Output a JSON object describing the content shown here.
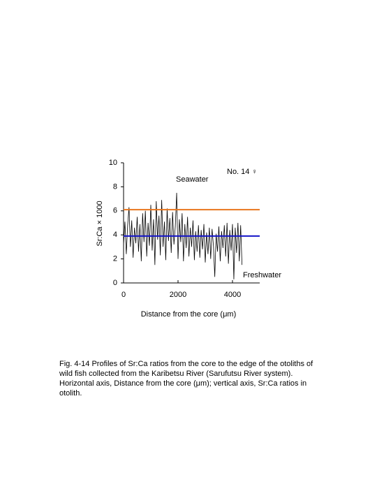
{
  "chart_data": {
    "type": "line",
    "xlabel": "Distance from the core (μm)",
    "ylabel": "Sr:Ca × 1000",
    "annotation": "No. 14 ♀",
    "xlim": [
      0,
      5000
    ],
    "xticks": [
      0,
      2000,
      4000
    ],
    "ylim": [
      0,
      10
    ],
    "yticks": [
      0,
      2,
      4,
      6,
      8,
      10
    ],
    "color": "#000000",
    "x": [
      0,
      50,
      100,
      150,
      200,
      250,
      300,
      350,
      400,
      450,
      500,
      550,
      600,
      650,
      700,
      750,
      800,
      850,
      900,
      950,
      1000,
      1050,
      1100,
      1150,
      1200,
      1250,
      1300,
      1350,
      1400,
      1450,
      1500,
      1550,
      1600,
      1650,
      1700,
      1750,
      1800,
      1850,
      1900,
      1950,
      2000,
      2050,
      2100,
      2150,
      2200,
      2250,
      2300,
      2350,
      2400,
      2450,
      2500,
      2550,
      2600,
      2650,
      2700,
      2750,
      2800,
      2850,
      2900,
      2950,
      3000,
      3050,
      3100,
      3150,
      3200,
      3250,
      3300,
      3350,
      3400,
      3450,
      3500,
      3550,
      3600,
      3650,
      3700,
      3750,
      3800,
      3850,
      3900,
      3950,
      4000,
      4050,
      4100,
      4150,
      4200,
      4250,
      4300,
      4350
    ],
    "values": [
      3.2,
      5.1,
      2.4,
      4.8,
      6.3,
      3.0,
      5.2,
      2.1,
      4.6,
      3.3,
      5.5,
      2.6,
      4.9,
      1.8,
      5.8,
      3.4,
      6.0,
      2.2,
      5.0,
      3.1,
      6.5,
      2.7,
      5.3,
      1.5,
      6.8,
      3.6,
      5.6,
      2.3,
      6.9,
      3.0,
      5.1,
      1.9,
      6.2,
      3.5,
      5.4,
      2.5,
      5.9,
      3.2,
      4.7,
      7.5,
      2.0,
      5.3,
      3.4,
      5.8,
      1.8,
      4.9,
      2.9,
      5.5,
      2.2,
      4.6,
      3.0,
      5.2,
      1.9,
      4.3,
      2.6,
      4.8,
      2.1,
      4.4,
      2.8,
      4.9,
      1.7,
      4.2,
      2.4,
      4.6,
      2.0,
      4.5,
      3.1,
      0.5,
      4.1,
      2.6,
      4.7,
      1.8,
      4.3,
      2.9,
      4.8,
      2.2,
      5.0,
      1.6,
      4.4,
      2.7,
      4.9,
      0.3,
      4.6,
      2.5,
      5.0,
      1.8,
      4.8,
      1.5
    ],
    "hlines": [
      {
        "name": "Seawater",
        "value": 6.1,
        "color": "#e8761e"
      },
      {
        "name": "Freshwater",
        "value": 3.9,
        "color": "#1414c8"
      }
    ]
  },
  "caption": "Fig. 4-14 Profiles of Sr:Ca ratios from the core to the edge of the otoliths of wild fish collected from the Karibetsu River (Sarufutsu River system). Horizontal axis, Distance from the core (μm); vertical axis, Sr:Ca ratios in otolith."
}
